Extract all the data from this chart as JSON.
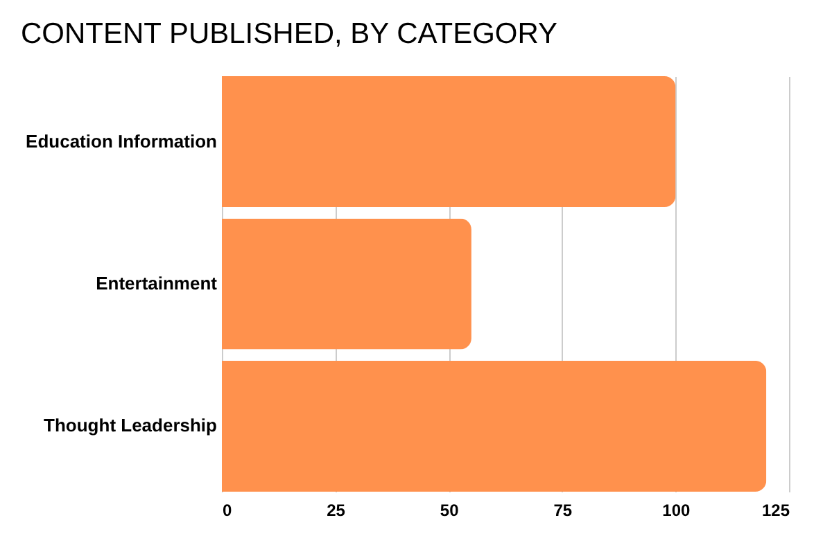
{
  "chart_data": {
    "type": "bar",
    "orientation": "horizontal",
    "title": "CONTENT PUBLISHED, BY CATEGORY",
    "categories": [
      "Education Information",
      "Entertainment",
      "Thought Leadership"
    ],
    "values": [
      100,
      55,
      120
    ],
    "color": "#ff914d",
    "xlim": [
      0,
      125
    ],
    "xticks": [
      0,
      25,
      50,
      75,
      100,
      125
    ],
    "grid": "x"
  }
}
